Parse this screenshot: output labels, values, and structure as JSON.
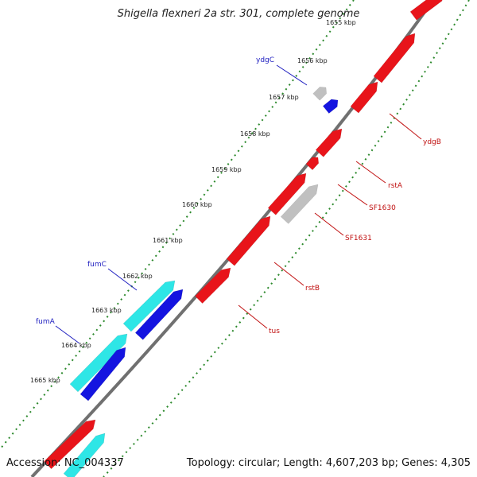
{
  "title": "Shigella flexneri 2a str. 301, complete genome",
  "footer": {
    "accession": "Accession: NC_004337",
    "summary": "Topology: circular; Length: 4,607,203 bp; Genes: 4,305"
  },
  "colors": {
    "forward_gene": "#e8141a",
    "reverse_gene": "#1414e0",
    "rna_forward": "#2ee6e6",
    "pseudo_gene": "#c0c0c0",
    "backbone": "#707070",
    "tick_dots": "#2d8a2d",
    "label_blue": "#2020c0",
    "label_red": "#c01010"
  },
  "ticks": [
    {
      "label": "1655 kbp"
    },
    {
      "label": "1656 kbp"
    },
    {
      "label": "1657 kbp"
    },
    {
      "label": "1658 kbp"
    },
    {
      "label": "1659 kbp"
    },
    {
      "label": "1660 kbp"
    },
    {
      "label": "1661 kbp"
    },
    {
      "label": "1662 kbp"
    },
    {
      "label": "1663 kbp"
    },
    {
      "label": "1664 kbp"
    },
    {
      "label": "1665 kbp"
    }
  ],
  "gene_labels": [
    {
      "name": "ydgC",
      "side": "left"
    },
    {
      "name": "fumC",
      "side": "left"
    },
    {
      "name": "fumA",
      "side": "left"
    },
    {
      "name": "ydgB",
      "side": "right"
    },
    {
      "name": "rstA",
      "side": "right"
    },
    {
      "name": "SF1630",
      "side": "right"
    },
    {
      "name": "SF1631",
      "side": "right"
    },
    {
      "name": "rstB",
      "side": "right"
    },
    {
      "name": "tus",
      "side": "right"
    }
  ]
}
